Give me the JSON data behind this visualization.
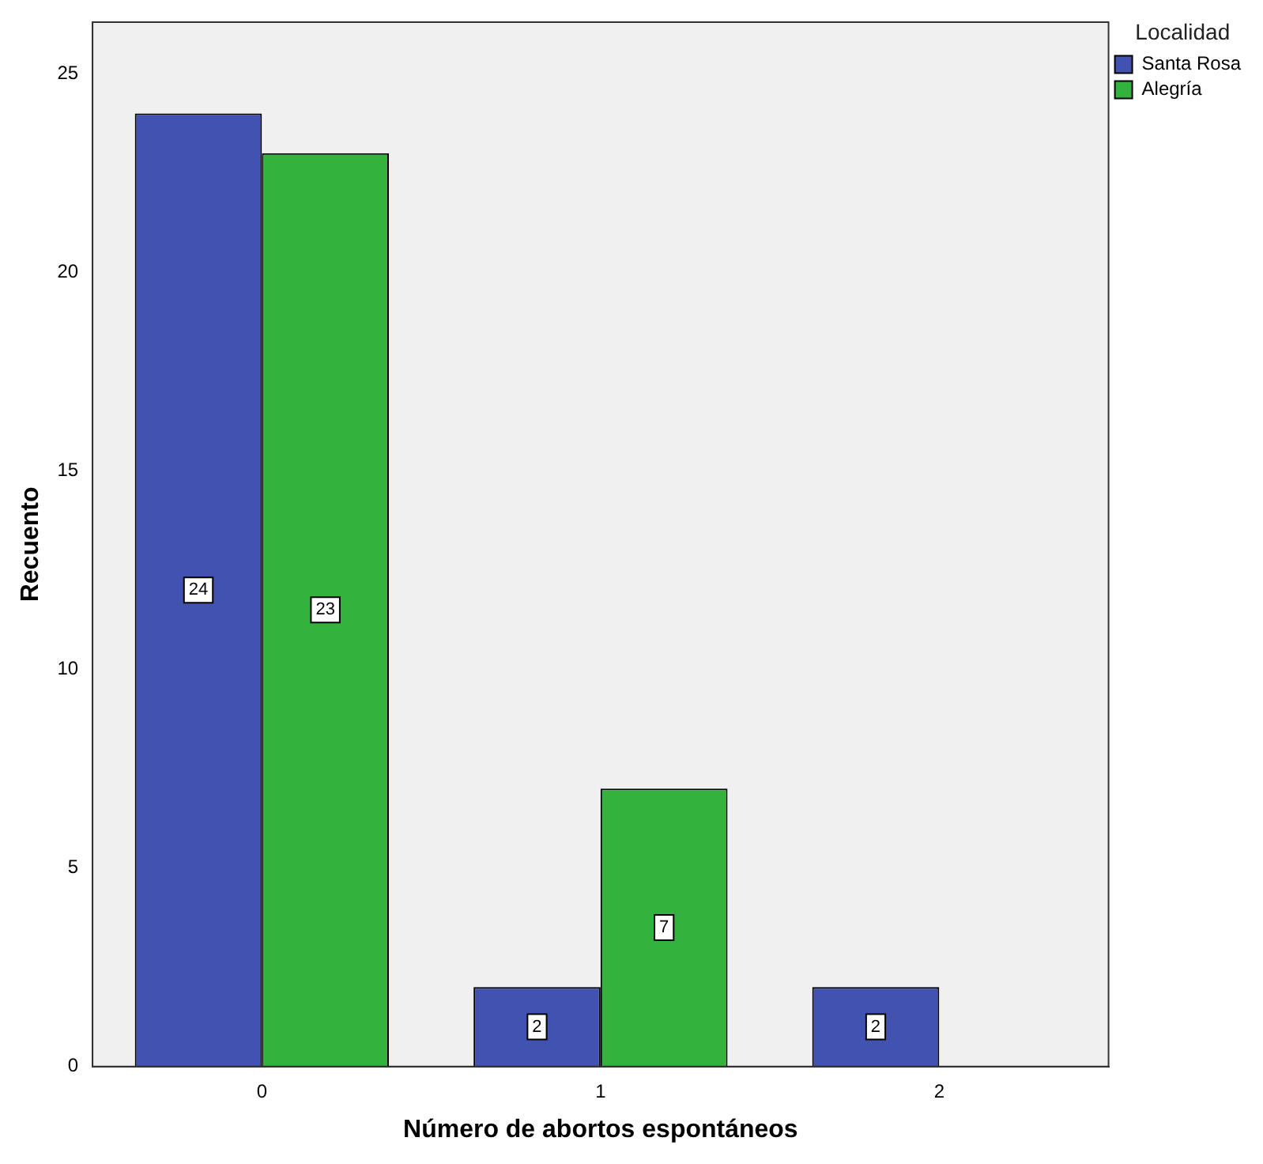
{
  "chart_data": {
    "type": "bar",
    "xlabel": "Número de abortos espontáneos",
    "ylabel": "Recuento",
    "legend_title": "Localidad",
    "categories": [
      "0",
      "1",
      "2"
    ],
    "series": [
      {
        "name": "Santa Rosa",
        "color": "#4152b0",
        "values": [
          24,
          2,
          2
        ]
      },
      {
        "name": "Alegría",
        "color": "#33b33d",
        "values": [
          23,
          7,
          null
        ]
      }
    ],
    "ylim": [
      0,
      26.3
    ],
    "yticks": [
      0,
      5,
      10,
      15,
      20,
      25
    ],
    "grid": false,
    "legend": "top right",
    "data_labels": true
  }
}
